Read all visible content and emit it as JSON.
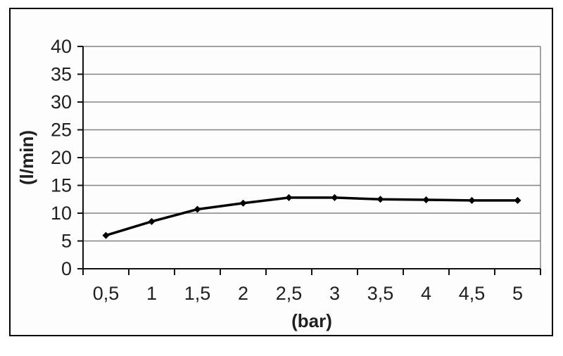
{
  "chart_data": {
    "type": "line",
    "categories": [
      "0,5",
      "1",
      "1,5",
      "2",
      "2,5",
      "3",
      "3,5",
      "4",
      "4,5",
      "5"
    ],
    "values": [
      6.0,
      8.5,
      10.7,
      11.8,
      12.8,
      12.8,
      12.5,
      12.4,
      12.3,
      12.3
    ],
    "xlabel": "(bar)",
    "ylabel": "(l/min)",
    "ylim": [
      0,
      40
    ],
    "ytick_labels": [
      "0",
      "5",
      "10",
      "15",
      "20",
      "25",
      "30",
      "35",
      "40"
    ],
    "grid": true,
    "legend": false,
    "marker": "diamond",
    "colors": {
      "line": "#000000",
      "marker": "#000000",
      "grid": "#848484",
      "axis": "#111111",
      "text": "#1f1f1f",
      "frame": "#000000",
      "background": "#ffffff"
    }
  }
}
